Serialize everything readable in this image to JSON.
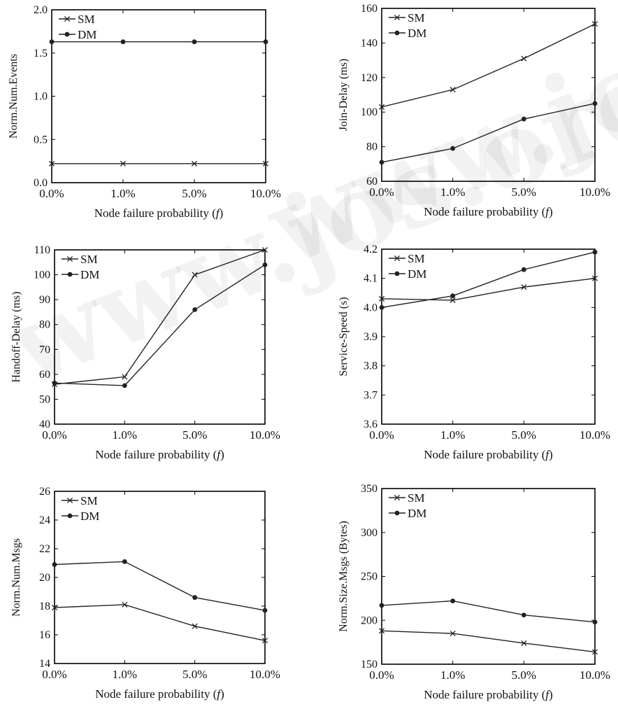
{
  "watermark": "www.jos.org.cn",
  "series_style": {
    "SM": {
      "marker": "x-mark"
    },
    "DM": {
      "marker": "dot-mark"
    }
  },
  "line_color": "#222222",
  "chart_data": [
    {
      "type": "line",
      "categories": [
        "0.0%",
        "1.0%",
        "5.0%",
        "10.0%"
      ],
      "xlabel": "Node failure probability (f)",
      "ylabel": "Norm.Num.Events",
      "ylim": [
        0.0,
        2.0
      ],
      "yticks": [
        0.0,
        0.5,
        1.0,
        1.5,
        2.0
      ],
      "ytick_labels": [
        "0.0",
        "0.5",
        "1.0",
        "1.5",
        "2.0"
      ],
      "legend_position": "top-left",
      "series": [
        {
          "name": "SM",
          "values": [
            0.22,
            0.22,
            0.22,
            0.22
          ]
        },
        {
          "name": "DM",
          "values": [
            1.63,
            1.63,
            1.63,
            1.63
          ]
        }
      ]
    },
    {
      "type": "line",
      "categories": [
        "0.0%",
        "1.0%",
        "5.0%",
        "10.0%"
      ],
      "xlabel": "Node failure probability (f)",
      "ylabel": "Join-Delay (ms)",
      "ylim": [
        60,
        160
      ],
      "yticks": [
        60,
        80,
        100,
        120,
        140,
        160
      ],
      "ytick_labels": [
        "60",
        "80",
        "100",
        "120",
        "140",
        "160"
      ],
      "legend_position": "top-left",
      "series": [
        {
          "name": "SM",
          "values": [
            103,
            113,
            131,
            151
          ]
        },
        {
          "name": "DM",
          "values": [
            71,
            79,
            96,
            105
          ]
        }
      ]
    },
    {
      "type": "line",
      "categories": [
        "0.0%",
        "1.0%",
        "5.0%",
        "10.0%"
      ],
      "xlabel": "Node failure probability (f)",
      "ylabel": "Handoff-Delay (ms)",
      "ylim": [
        40,
        110
      ],
      "yticks": [
        40,
        50,
        60,
        70,
        80,
        90,
        100,
        110
      ],
      "ytick_labels": [
        "40",
        "50",
        "60",
        "70",
        "80",
        "90",
        "100",
        "110"
      ],
      "legend_position": "top-left",
      "series": [
        {
          "name": "SM",
          "values": [
            56,
            59,
            100,
            110
          ]
        },
        {
          "name": "DM",
          "values": [
            56.5,
            55.5,
            86,
            104
          ]
        }
      ]
    },
    {
      "type": "line",
      "categories": [
        "0.0%",
        "1.0%",
        "5.0%",
        "10.0%"
      ],
      "xlabel": "Node failure probability (f)",
      "ylabel": "Service-Speed (s)",
      "ylim": [
        3.6,
        4.2
      ],
      "yticks": [
        3.6,
        3.7,
        3.8,
        3.9,
        4.0,
        4.1,
        4.2
      ],
      "ytick_labels": [
        "3.6",
        "3.7",
        "3.8",
        "3.9",
        "4.0",
        "4.1",
        "4.2"
      ],
      "legend_position": "top-left",
      "series": [
        {
          "name": "SM",
          "values": [
            4.03,
            4.025,
            4.07,
            4.1
          ]
        },
        {
          "name": "DM",
          "values": [
            4.0,
            4.04,
            4.13,
            4.19
          ]
        }
      ]
    },
    {
      "type": "line",
      "categories": [
        "0.0%",
        "1.0%",
        "5.0%",
        "10.0%"
      ],
      "xlabel": "Node failure probability (f)",
      "ylabel": "Norm.Num.Msgs",
      "ylim": [
        14,
        26
      ],
      "yticks": [
        14,
        16,
        18,
        20,
        22,
        24,
        26
      ],
      "ytick_labels": [
        "14",
        "16",
        "18",
        "20",
        "22",
        "24",
        "26"
      ],
      "legend_position": "top-left",
      "series": [
        {
          "name": "SM",
          "values": [
            17.9,
            18.1,
            16.6,
            15.6
          ]
        },
        {
          "name": "DM",
          "values": [
            20.9,
            21.1,
            18.6,
            17.7
          ]
        }
      ]
    },
    {
      "type": "line",
      "categories": [
        "0.0%",
        "1.0%",
        "5.0%",
        "10.0%"
      ],
      "xlabel": "Node failure probability (f)",
      "ylabel": "Norm.Size.Msgs (Bytes)",
      "ylim": [
        150,
        350
      ],
      "yticks": [
        150,
        200,
        250,
        300,
        350
      ],
      "ytick_labels": [
        "150",
        "200",
        "250",
        "300",
        "350"
      ],
      "legend_position": "top-left",
      "series": [
        {
          "name": "SM",
          "values": [
            188,
            185,
            174,
            164
          ]
        },
        {
          "name": "DM",
          "values": [
            217,
            222,
            206,
            198
          ]
        }
      ]
    }
  ]
}
